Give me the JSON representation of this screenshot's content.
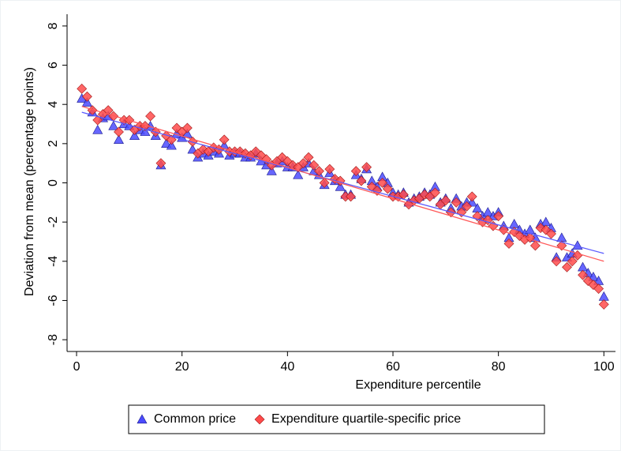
{
  "chart_data": {
    "type": "scatter",
    "x_label": "Expenditure percentile",
    "y_label": "Deviation from mean (percentage points)",
    "x": [
      1,
      2,
      3,
      4,
      5,
      6,
      7,
      8,
      9,
      10,
      11,
      12,
      13,
      14,
      15,
      16,
      17,
      18,
      19,
      20,
      21,
      22,
      23,
      24,
      25,
      26,
      27,
      28,
      29,
      30,
      31,
      32,
      33,
      34,
      35,
      36,
      37,
      38,
      39,
      40,
      41,
      42,
      43,
      44,
      45,
      46,
      47,
      48,
      49,
      50,
      51,
      52,
      53,
      54,
      55,
      56,
      57,
      58,
      59,
      60,
      61,
      62,
      63,
      64,
      65,
      66,
      67,
      68,
      69,
      70,
      71,
      72,
      73,
      74,
      75,
      76,
      77,
      78,
      79,
      80,
      81,
      82,
      83,
      84,
      85,
      86,
      87,
      88,
      89,
      90,
      91,
      92,
      93,
      94,
      95,
      96,
      97,
      98,
      99,
      100
    ],
    "series": [
      {
        "name": "Common price",
        "color": "#4b4bff",
        "marker": "triangle",
        "values": [
          4.3,
          4.1,
          3.6,
          2.7,
          3.3,
          3.4,
          2.9,
          2.2,
          3.0,
          2.9,
          2.4,
          2.7,
          2.6,
          2.9,
          2.4,
          0.9,
          2.0,
          1.9,
          2.5,
          2.3,
          2.5,
          1.7,
          1.3,
          1.5,
          1.4,
          1.6,
          1.5,
          1.9,
          1.4,
          1.5,
          1.5,
          1.3,
          1.3,
          1.5,
          1.1,
          0.9,
          0.6,
          1.0,
          1.1,
          0.8,
          0.8,
          0.4,
          0.8,
          1.0,
          0.6,
          0.4,
          -0.1,
          0.5,
          0.1,
          -0.2,
          -0.6,
          -0.6,
          0.4,
          0.2,
          0.7,
          0.1,
          -0.2,
          0.3,
          0.0,
          -0.5,
          -0.6,
          -0.5,
          -1.0,
          -0.8,
          -0.7,
          -0.5,
          -0.6,
          -0.2,
          -1.0,
          -0.8,
          -1.3,
          -0.8,
          -1.2,
          -1.0,
          -1.0,
          -1.3,
          -1.7,
          -1.5,
          -1.7,
          -1.5,
          -2.2,
          -2.8,
          -2.1,
          -2.4,
          -2.6,
          -2.4,
          -2.8,
          -2.1,
          -2.0,
          -2.3,
          -3.8,
          -2.8,
          -3.8,
          -3.6,
          -3.2,
          -4.3,
          -4.6,
          -4.8,
          -5.0,
          -5.8
        ]
      },
      {
        "name": "Expenditure quartile-specific price",
        "color": "#ff4b4b",
        "marker": "diamond",
        "values": [
          4.8,
          4.4,
          3.7,
          3.2,
          3.5,
          3.7,
          3.4,
          2.6,
          3.2,
          3.2,
          2.7,
          2.9,
          2.9,
          3.4,
          2.6,
          1.0,
          2.4,
          2.2,
          2.8,
          2.6,
          2.8,
          2.1,
          1.5,
          1.7,
          1.6,
          1.8,
          1.7,
          2.2,
          1.6,
          1.6,
          1.6,
          1.5,
          1.4,
          1.6,
          1.4,
          1.2,
          0.9,
          1.1,
          1.3,
          1.1,
          0.9,
          0.8,
          1.0,
          1.3,
          0.9,
          0.6,
          0.0,
          0.7,
          0.2,
          0.1,
          -0.7,
          -0.7,
          0.6,
          0.1,
          0.8,
          -0.2,
          -0.4,
          0.0,
          -0.3,
          -0.7,
          -0.7,
          -0.6,
          -1.1,
          -0.9,
          -0.8,
          -0.6,
          -0.7,
          -0.5,
          -1.1,
          -0.9,
          -1.5,
          -1.0,
          -1.5,
          -1.2,
          -0.7,
          -1.7,
          -2.0,
          -1.9,
          -2.2,
          -1.7,
          -2.4,
          -3.1,
          -2.5,
          -2.7,
          -2.9,
          -2.8,
          -3.2,
          -2.3,
          -2.4,
          -2.6,
          -4.0,
          -3.2,
          -4.3,
          -4.0,
          -3.7,
          -4.7,
          -5.0,
          -5.2,
          -5.4,
          -6.2
        ]
      }
    ],
    "fits": [
      {
        "color": "#5a5aff",
        "x": [
          1,
          100
        ],
        "values": [
          3.6,
          -3.6
        ]
      },
      {
        "color": "#ff5a5a",
        "x": [
          1,
          100
        ],
        "values": [
          3.9,
          -4.0
        ]
      }
    ],
    "xlim": [
      -1.8,
      102.2
    ],
    "ylim": [
      -8.6,
      8.6
    ],
    "xticks": [
      0,
      20,
      40,
      60,
      80,
      100
    ],
    "yticks": [
      -8,
      -6,
      -4,
      -2,
      0,
      2,
      4,
      6,
      8
    ],
    "legend": "bottom"
  }
}
